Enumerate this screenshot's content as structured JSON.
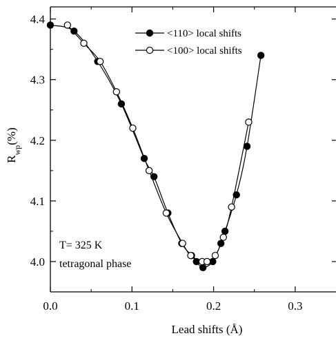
{
  "chart_data": {
    "type": "line",
    "xlabel": "Lead shifts (Å)",
    "ylabel": {
      "main": "R",
      "sub": "wp",
      "suffix": "(%)"
    },
    "xlim": [
      0.0,
      0.35
    ],
    "ylim": [
      3.95,
      4.42
    ],
    "xticks": [
      0.0,
      0.1,
      0.2,
      0.3
    ],
    "xtick_labels": [
      "0.0",
      "0.1",
      "0.2",
      "0.3"
    ],
    "yticks": [
      4.0,
      4.1,
      4.2,
      4.3,
      4.4
    ],
    "ytick_labels": [
      "4.0",
      "4.1",
      "4.2",
      "4.3",
      "4.4"
    ],
    "grid": false,
    "legend_position": "top-right",
    "annotation": [
      "T= 325 K",
      "tetragonal phase"
    ],
    "series": [
      {
        "name": "<110> local shifts",
        "marker": "filled-circle",
        "color": "#000000",
        "x": [
          0.0,
          0.029,
          0.058,
          0.087,
          0.115,
          0.127,
          0.144,
          0.161,
          0.173,
          0.179,
          0.187,
          0.199,
          0.209,
          0.214,
          0.228,
          0.241,
          0.258
        ],
        "y": [
          4.39,
          4.38,
          4.33,
          4.26,
          4.17,
          4.14,
          4.08,
          4.03,
          4.01,
          4.0,
          3.99,
          4.0,
          4.03,
          4.05,
          4.11,
          4.19,
          4.34
        ]
      },
      {
        "name": "<100> local shifts",
        "marker": "open-circle",
        "color": "#000000",
        "x": [
          0.021,
          0.041,
          0.061,
          0.081,
          0.101,
          0.121,
          0.142,
          0.162,
          0.172,
          0.186,
          0.192,
          0.202,
          0.212,
          0.222,
          0.243
        ],
        "y": [
          4.39,
          4.36,
          4.33,
          4.28,
          4.22,
          4.15,
          4.08,
          4.03,
          4.01,
          4.0,
          4.0,
          4.01,
          4.04,
          4.09,
          4.23
        ]
      }
    ]
  }
}
